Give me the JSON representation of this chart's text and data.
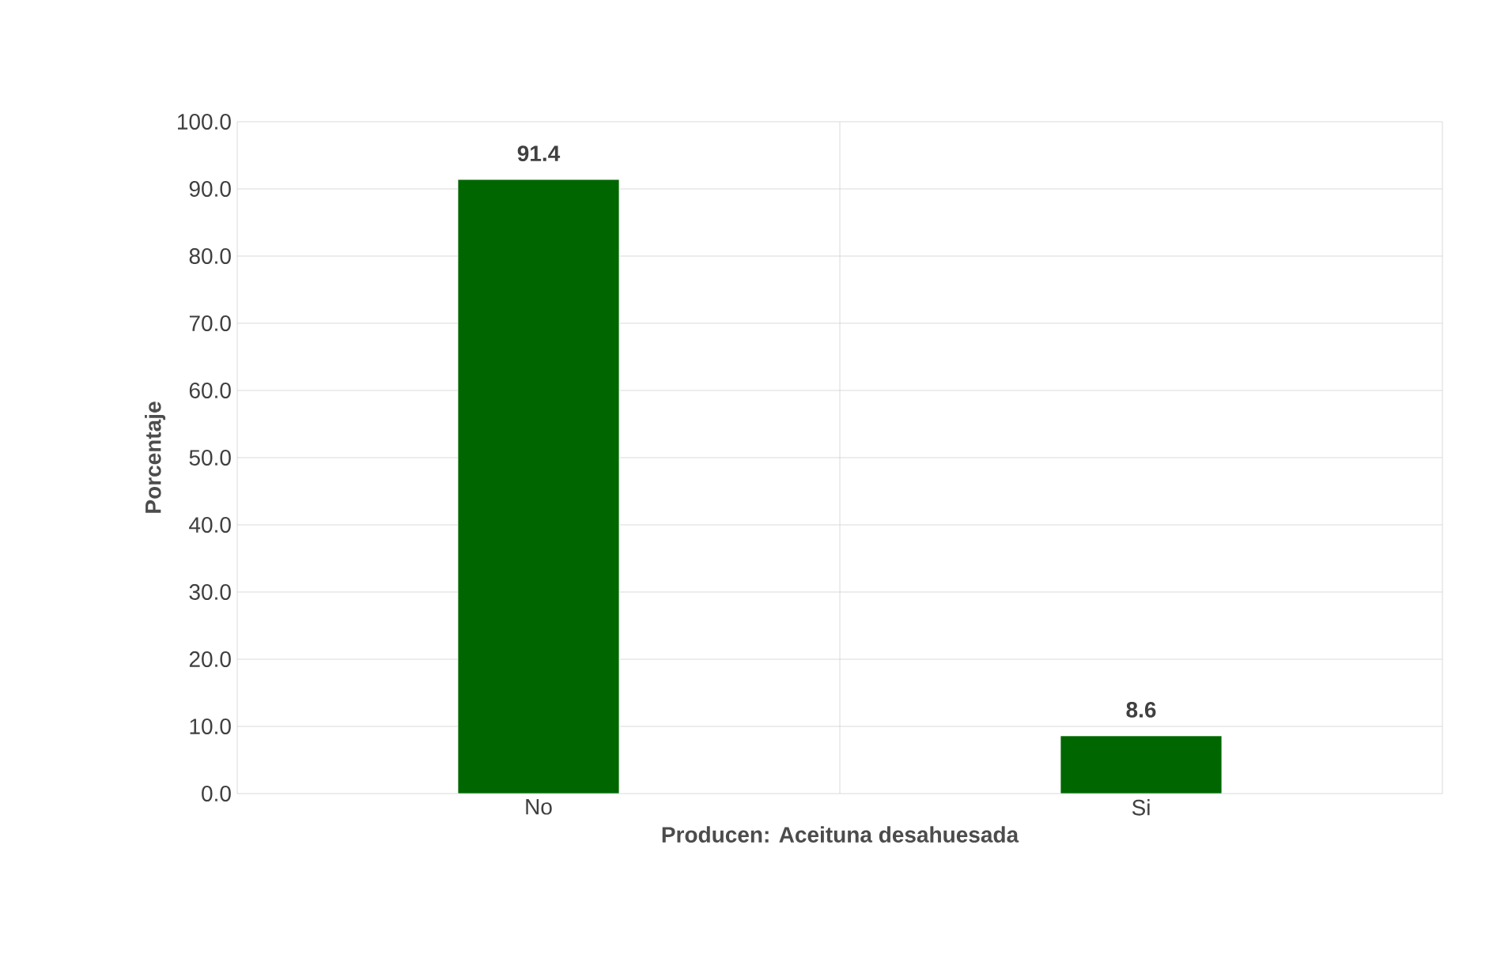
{
  "chart_data": {
    "type": "bar",
    "categories": [
      "No",
      "Si"
    ],
    "values": [
      91.4,
      8.6
    ],
    "color": "#006600",
    "xlabel": "Producen: Aceituna desahuesada",
    "ylabel": "Porcentaje",
    "ylim": [
      0,
      100
    ],
    "yticks": [
      {
        "value": 0,
        "label": "0.0"
      },
      {
        "value": 10,
        "label": "10.0"
      },
      {
        "value": 20,
        "label": "20.0"
      },
      {
        "value": 30,
        "label": "30.0"
      },
      {
        "value": 40,
        "label": "40.0"
      },
      {
        "value": 50,
        "label": "50.0"
      },
      {
        "value": 60,
        "label": "60.0"
      },
      {
        "value": 70,
        "label": "70.0"
      },
      {
        "value": 80,
        "label": "80.0"
      },
      {
        "value": 90,
        "label": "90.0"
      },
      {
        "value": 100,
        "label": "100.0"
      }
    ],
    "grid": true,
    "data_labels": true
  }
}
